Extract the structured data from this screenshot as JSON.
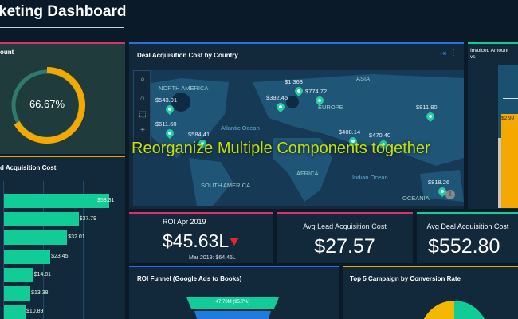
{
  "header": {
    "title": "keting Dashboard"
  },
  "overlay": {
    "text": "Reorganize Multiple Components together"
  },
  "gauge": {
    "title": "ount",
    "value_label": "66.67%",
    "value": 66.67,
    "colors": {
      "arc": "#f5a800",
      "track": "#2e7b6e"
    }
  },
  "lead_cost": {
    "title": "d Acquisition Cost",
    "bars": [
      {
        "label": "$53.31",
        "value": 53.31
      },
      {
        "label": "$37.79",
        "value": 37.79
      },
      {
        "label": "$32.01",
        "value": 32.01
      },
      {
        "label": "$23.45",
        "value": 23.45
      },
      {
        "label": "$14.81",
        "value": 14.81
      },
      {
        "label": "$13.38",
        "value": 13.38
      },
      {
        "label": "$10.89",
        "value": 10.89
      }
    ]
  },
  "map": {
    "title": "Deal Acquisition Cost by Country",
    "regions": [
      "ASIA",
      "NORTH AMERICA",
      "SOUTH AMERICA",
      "Atlantic Ocean",
      "Indian Ocean",
      "AFRICA",
      "EUROPE",
      "OCEANIA"
    ],
    "pins": [
      {
        "label": "$543.91"
      },
      {
        "label": "$611.60"
      },
      {
        "label": "$584.41"
      },
      {
        "label": "$392.45"
      },
      {
        "label": "$1,363"
      },
      {
        "label": "$774.72"
      },
      {
        "label": "$408.14"
      },
      {
        "label": "$470.40"
      },
      {
        "label": "$811.80"
      },
      {
        "label": "$818.26"
      }
    ]
  },
  "invoiced": {
    "title": "Invoiced Amount vs",
    "bar_label": "$2.99"
  },
  "kpis": [
    {
      "title": "ROI Apr 2019",
      "value": "$45.63L",
      "sub": "Mar 2019: $64.45L",
      "trend": "down"
    },
    {
      "title": "Avg Lead Acquisition Cost",
      "value": "$27.57"
    },
    {
      "title": "Avg Deal Acquisition Cost",
      "value": "$552.80"
    }
  ],
  "funnel": {
    "title": "ROI Funnel (Google Ads to Books)",
    "top_label": "47.70M (95.7%)"
  },
  "campaign": {
    "title": "Top 5 Campaign by Conversion Rate"
  },
  "colors": {
    "pink": "#e0306a",
    "gold": "#e0a800",
    "blue": "#2d6fe0",
    "teal": "#12cc98",
    "overlay": "#c8e000"
  }
}
